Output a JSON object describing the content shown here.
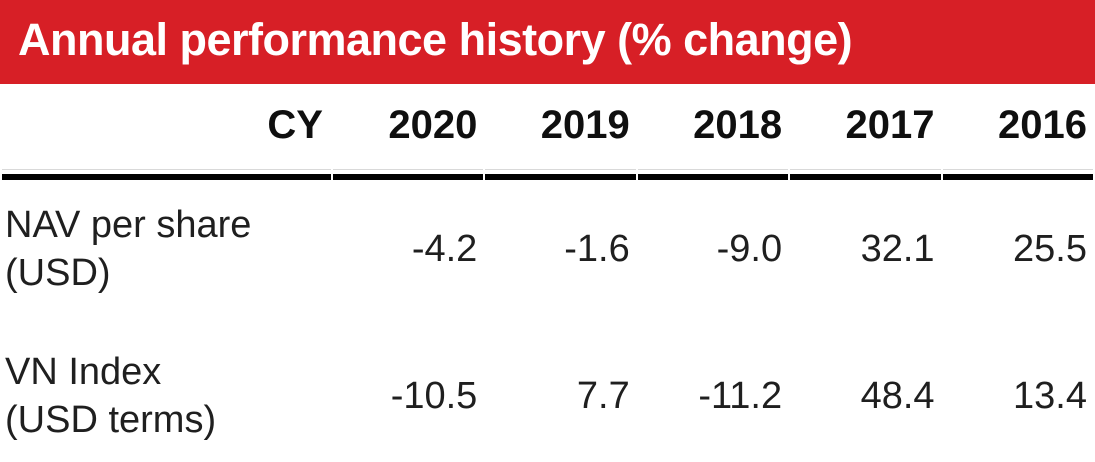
{
  "banner": {
    "title": "Annual performance history (% change)",
    "background_color": "#d71f26",
    "text_color": "#ffffff"
  },
  "table": {
    "columns": [
      "CY",
      "2020",
      "2019",
      "2018",
      "2017",
      "2016"
    ],
    "rows": [
      {
        "label_lines": [
          "NAV per share",
          "(USD)"
        ],
        "values": [
          "-4.2",
          "-1.6",
          "-9.0",
          "32.1",
          "25.5"
        ]
      },
      {
        "label_lines": [
          "VN Index",
          "(USD terms)"
        ],
        "values": [
          "-10.5",
          "7.7",
          "-11.2",
          "48.4",
          "13.4"
        ]
      }
    ]
  },
  "chart_data": {
    "type": "table",
    "title": "Annual performance history (% change)",
    "categories": [
      "2020",
      "2019",
      "2018",
      "2017",
      "2016"
    ],
    "series": [
      {
        "name": "NAV per share (USD)",
        "values": [
          -4.2,
          -1.6,
          -9.0,
          32.1,
          25.5
        ]
      },
      {
        "name": "VN Index (USD terms)",
        "values": [
          -10.5,
          7.7,
          -11.2,
          48.4,
          13.4
        ]
      }
    ]
  }
}
